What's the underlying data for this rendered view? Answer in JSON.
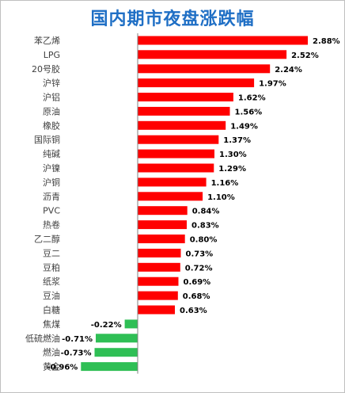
{
  "chart_data": {
    "type": "bar",
    "orientation": "horizontal",
    "title": "国内期市夜盘涨跌幅",
    "categories": [
      "苯乙烯",
      "LPG",
      "20号胶",
      "沪锌",
      "沪铝",
      "原油",
      "橡胶",
      "国际铜",
      "纯碱",
      "沪镍",
      "沪铜",
      "沥青",
      "PVC",
      "热卷",
      "乙二醇",
      "豆二",
      "豆粕",
      "纸浆",
      "豆油",
      "白糖",
      "焦煤",
      "低硫燃油",
      "燃油",
      "黄金"
    ],
    "values": [
      2.88,
      2.52,
      2.24,
      1.97,
      1.62,
      1.56,
      1.49,
      1.37,
      1.3,
      1.29,
      1.16,
      1.1,
      0.84,
      0.83,
      0.8,
      0.73,
      0.72,
      0.69,
      0.68,
      0.63,
      -0.22,
      -0.71,
      -0.73,
      -0.96
    ],
    "value_labels": [
      "2.88%",
      "2.52%",
      "2.24%",
      "1.97%",
      "1.62%",
      "1.56%",
      "1.49%",
      "1.37%",
      "1.30%",
      "1.29%",
      "1.16%",
      "1.10%",
      "0.84%",
      "0.83%",
      "0.80%",
      "0.73%",
      "0.72%",
      "0.69%",
      "0.68%",
      "0.63%",
      "-0.22%",
      "-0.71%",
      "-0.73%",
      "-0.96%"
    ],
    "unit": "%",
    "grid": false,
    "legend": "none",
    "colors": {
      "positive": "#ff0000",
      "negative": "#2fbf55",
      "title": "#1f6fc5",
      "axis": "#808080"
    }
  }
}
